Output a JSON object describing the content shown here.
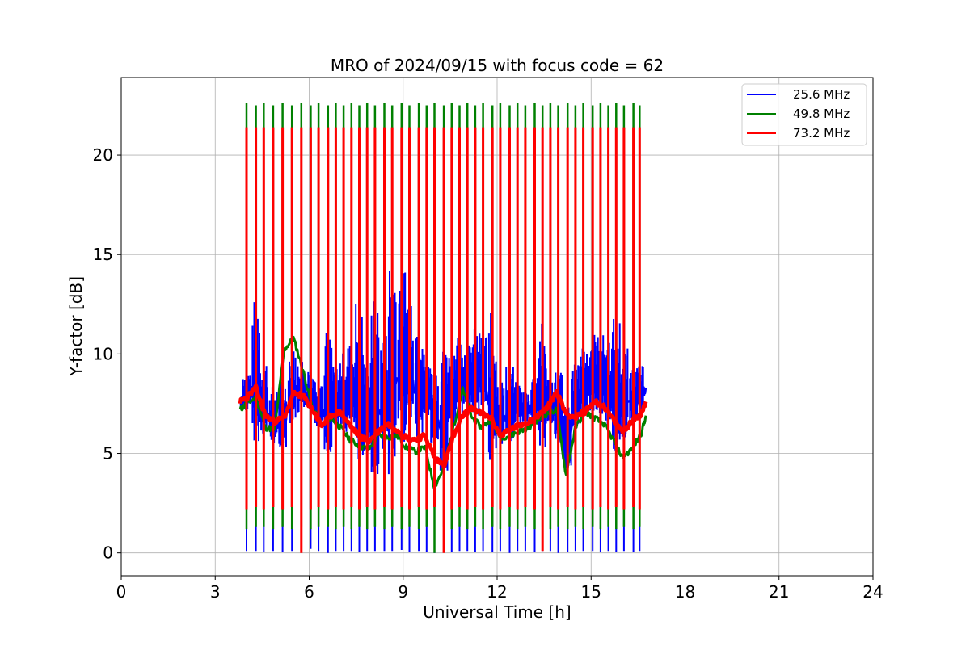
{
  "chart_data": {
    "type": "line",
    "title": "MRO of 2024/09/15 with focus code = 62",
    "xlabel": "Universal Time [h]",
    "ylabel": "Y-factor [dB]",
    "xlim": [
      0,
      24
    ],
    "ylim": [
      -1.15,
      23.9
    ],
    "xticks": [
      0,
      3,
      6,
      9,
      12,
      15,
      18,
      21,
      24
    ],
    "yticks": [
      0,
      5,
      10,
      15,
      20
    ],
    "grid": true,
    "legend_position": "top-right",
    "colors": {
      "25.6 MHz": "#0000ff",
      "49.8 MHz": "#008000",
      "73.2 MHz": "#ff0000"
    },
    "series": [
      {
        "name": "25.6 MHz",
        "x": [
          3.8,
          4.0,
          4.3,
          4.6,
          4.9,
          5.2,
          5.5,
          5.8,
          6.1,
          6.4,
          6.7,
          7.0,
          7.3,
          7.6,
          7.9,
          8.2,
          8.5,
          8.8,
          9.1,
          9.4,
          9.7,
          10.0,
          10.3,
          10.6,
          10.9,
          11.2,
          11.5,
          11.8,
          12.1,
          12.4,
          12.7,
          13.0,
          13.3,
          13.6,
          13.9,
          14.2,
          14.5,
          14.8,
          15.1,
          15.4,
          15.7,
          16.0,
          16.3,
          16.6,
          16.75
        ],
        "y": [
          7.5,
          7.9,
          8.3,
          7.2,
          6.4,
          6.6,
          8.2,
          8.0,
          7.8,
          7.0,
          7.6,
          7.3,
          8.0,
          7.4,
          6.7,
          7.0,
          7.6,
          8.6,
          9.4,
          8.1,
          8.3,
          6.8,
          6.2,
          8.3,
          8.6,
          8.2,
          9.1,
          7.3,
          6.7,
          7.0,
          7.3,
          7.1,
          7.7,
          7.5,
          7.2,
          4.8,
          7.5,
          8.2,
          8.7,
          8.3,
          7.7,
          7.4,
          7.5,
          8.0,
          8.3
        ],
        "spikes": {
          "x": [
            4.0,
            4.3,
            4.55,
            4.85,
            5.15,
            5.45,
            5.75,
            6.05,
            6.3,
            6.6,
            6.85,
            7.1,
            7.35,
            7.6,
            7.85,
            8.1,
            8.4,
            8.65,
            8.95,
            9.2,
            9.5,
            9.75,
            10.0,
            10.3,
            10.55,
            10.8,
            11.05,
            11.3,
            11.55,
            11.85,
            12.1,
            12.4,
            12.65,
            12.9,
            13.2,
            13.45,
            13.7,
            13.95,
            14.25,
            14.5,
            14.75,
            15.05,
            15.3,
            15.55,
            15.8,
            16.05,
            16.35,
            16.55
          ],
          "low": [
            0.1,
            0.1,
            0.05,
            0.1,
            0.05,
            0.1,
            0.1,
            0.2,
            0.1,
            0.0,
            0.1,
            0.1,
            0.1,
            0.05,
            0.1,
            0.1,
            0.1,
            0.1,
            0.15,
            0.05,
            0.1,
            0.05,
            0.0,
            0.1,
            0.05,
            0.1,
            0.1,
            0.05,
            0.1,
            0.05,
            0.1,
            0.0,
            0.1,
            0.1,
            0.05,
            0.1,
            0.1,
            0.0,
            0.05,
            0.1,
            0.1,
            0.1,
            0.05,
            0.1,
            0.05,
            0.1,
            0.05,
            0.1
          ],
          "high": [
            9.2,
            12.8,
            9.8,
            8.4,
            8.7,
            10.3,
            9.8,
            9.3,
            8.9,
            11.3,
            9.4,
            10.1,
            10.6,
            12.9,
            9.7,
            12.8,
            11.2,
            15.1,
            14.7,
            13.4,
            12.2,
            10.1,
            9.4,
            10.2,
            10.6,
            11.1,
            10.5,
            11.3,
            11.1,
            12.1,
            8.8,
            9.5,
            8.6,
            8.2,
            9.3,
            11.6,
            8.9,
            9.3,
            7.6,
            9.5,
            10.7,
            11.1,
            11.0,
            10.9,
            11.9,
            10.3,
            9.5,
            9.4
          ]
        }
      },
      {
        "name": "49.8 MHz",
        "x": [
          3.8,
          4.0,
          4.3,
          4.6,
          4.9,
          5.2,
          5.5,
          5.8,
          6.1,
          6.4,
          6.7,
          7.0,
          7.3,
          7.6,
          7.9,
          8.2,
          8.5,
          8.8,
          9.1,
          9.4,
          9.7,
          10.0,
          10.3,
          10.6,
          10.9,
          11.2,
          11.5,
          11.8,
          12.1,
          12.4,
          12.7,
          13.0,
          13.3,
          13.6,
          13.9,
          14.2,
          14.5,
          14.8,
          15.1,
          15.4,
          15.7,
          16.0,
          16.3,
          16.6,
          16.75
        ],
        "y": [
          7.2,
          7.5,
          7.8,
          6.3,
          6.2,
          10.2,
          10.8,
          9.2,
          7.3,
          6.4,
          6.8,
          6.3,
          5.7,
          5.4,
          5.2,
          5.9,
          5.8,
          5.9,
          5.3,
          5.1,
          5.3,
          3.3,
          4.3,
          6.3,
          8.2,
          6.8,
          6.3,
          6.7,
          5.8,
          5.9,
          6.1,
          6.3,
          6.7,
          7.0,
          7.2,
          3.9,
          6.3,
          7.1,
          6.8,
          6.5,
          5.7,
          4.8,
          5.2,
          6.0,
          6.9
        ],
        "spikes": {
          "x": [
            4.0,
            4.3,
            4.55,
            4.85,
            5.15,
            5.45,
            5.75,
            6.05,
            6.3,
            6.6,
            6.85,
            7.1,
            7.35,
            7.6,
            7.85,
            8.1,
            8.4,
            8.65,
            8.95,
            9.2,
            9.5,
            9.75,
            10.0,
            10.3,
            10.55,
            10.8,
            11.05,
            11.3,
            11.55,
            11.85,
            12.1,
            12.4,
            12.65,
            12.9,
            13.2,
            13.45,
            13.7,
            13.95,
            14.25,
            14.5,
            14.75,
            15.05,
            15.3,
            15.55,
            15.8,
            16.05,
            16.35,
            16.55
          ],
          "low": [
            1.2,
            1.3,
            1.3,
            1.2,
            1.3,
            1.2,
            1.3,
            1.2,
            1.3,
            1.3,
            1.2,
            1.3,
            1.2,
            1.3,
            1.2,
            1.3,
            1.2,
            1.3,
            1.2,
            1.3,
            1.2,
            1.3,
            0.0,
            1.3,
            1.2,
            1.3,
            1.2,
            1.3,
            1.2,
            1.3,
            1.2,
            1.3,
            1.2,
            1.3,
            1.2,
            1.3,
            1.2,
            1.3,
            1.2,
            1.3,
            1.2,
            1.3,
            1.2,
            1.3,
            1.2,
            1.3,
            1.2,
            1.3
          ],
          "high": [
            22.6,
            22.5,
            22.6,
            22.5,
            22.6,
            22.5,
            22.6,
            22.5,
            22.6,
            22.5,
            22.6,
            22.5,
            22.6,
            22.5,
            22.6,
            22.5,
            22.6,
            22.5,
            22.6,
            22.5,
            22.6,
            22.5,
            22.6,
            22.5,
            22.6,
            22.5,
            22.6,
            22.5,
            22.6,
            22.5,
            22.6,
            22.5,
            22.6,
            22.5,
            22.6,
            22.5,
            22.6,
            22.5,
            22.6,
            22.5,
            22.6,
            22.5,
            22.6,
            22.5,
            22.6,
            22.5,
            22.6,
            22.5
          ]
        }
      },
      {
        "name": "73.2 MHz",
        "x": [
          3.8,
          4.0,
          4.3,
          4.6,
          4.9,
          5.2,
          5.5,
          5.8,
          6.1,
          6.4,
          6.7,
          7.0,
          7.3,
          7.6,
          7.9,
          8.2,
          8.5,
          8.8,
          9.1,
          9.4,
          9.7,
          10.0,
          10.3,
          10.6,
          10.9,
          11.2,
          11.5,
          11.8,
          12.1,
          12.4,
          12.7,
          13.0,
          13.3,
          13.6,
          13.9,
          14.2,
          14.5,
          14.8,
          15.1,
          15.4,
          15.7,
          16.0,
          16.3,
          16.6,
          16.75
        ],
        "y": [
          7.6,
          7.8,
          8.3,
          6.9,
          6.6,
          6.8,
          8.0,
          7.9,
          7.2,
          6.4,
          6.9,
          7.1,
          6.4,
          5.9,
          5.6,
          6.1,
          6.5,
          6.2,
          5.8,
          5.7,
          5.9,
          4.8,
          4.4,
          5.8,
          6.9,
          7.3,
          7.0,
          6.8,
          5.9,
          6.2,
          6.4,
          6.6,
          6.9,
          7.3,
          8.1,
          7.0,
          6.8,
          7.1,
          7.6,
          7.4,
          6.7,
          6.1,
          6.6,
          7.0,
          7.6
        ],
        "spikes": {
          "x": [
            4.0,
            4.3,
            4.55,
            4.85,
            5.15,
            5.45,
            5.75,
            6.05,
            6.3,
            6.6,
            6.85,
            7.1,
            7.35,
            7.6,
            7.85,
            8.1,
            8.4,
            8.65,
            8.95,
            9.2,
            9.5,
            9.75,
            10.0,
            10.3,
            10.55,
            10.8,
            11.05,
            11.3,
            11.55,
            11.85,
            12.1,
            12.4,
            12.65,
            12.9,
            13.2,
            13.45,
            13.7,
            13.95,
            14.25,
            14.5,
            14.75,
            15.05,
            15.3,
            15.55,
            15.8,
            16.05,
            16.35,
            16.55
          ],
          "low": [
            2.2,
            2.3,
            2.2,
            2.3,
            2.2,
            2.3,
            0.0,
            2.2,
            2.3,
            2.2,
            2.3,
            2.2,
            2.3,
            2.2,
            2.3,
            2.2,
            2.3,
            2.2,
            2.3,
            2.2,
            2.3,
            2.2,
            2.3,
            0.0,
            2.2,
            2.3,
            2.2,
            2.3,
            2.2,
            2.3,
            2.2,
            2.3,
            2.2,
            2.3,
            2.2,
            0.1,
            2.3,
            2.2,
            2.3,
            2.2,
            2.3,
            2.2,
            2.3,
            2.2,
            2.3,
            2.2,
            2.3,
            2.2
          ],
          "high": [
            21.4,
            21.4,
            21.4,
            21.4,
            21.4,
            21.4,
            21.4,
            21.4,
            21.4,
            21.4,
            21.4,
            21.4,
            21.4,
            21.4,
            21.4,
            21.4,
            21.4,
            21.4,
            21.4,
            21.4,
            21.4,
            21.4,
            21.4,
            21.4,
            21.4,
            21.4,
            21.4,
            21.4,
            21.4,
            21.4,
            21.4,
            21.4,
            21.4,
            21.4,
            21.4,
            21.4,
            21.4,
            21.4,
            21.4,
            21.4,
            21.4,
            21.4,
            21.4,
            21.4,
            21.4,
            21.4,
            21.4,
            21.4
          ]
        }
      }
    ]
  }
}
